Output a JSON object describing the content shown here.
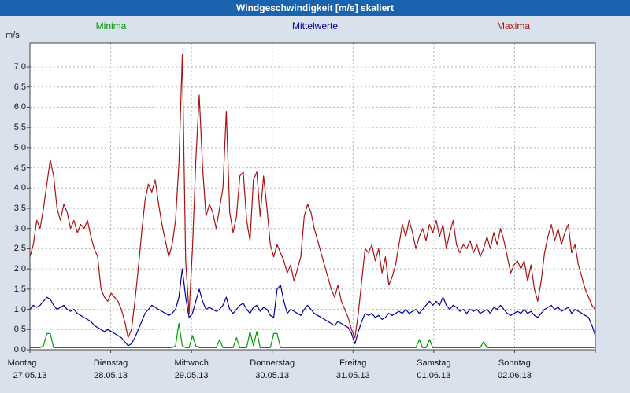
{
  "title": "Windgeschwindigkeit [m/s] skaliert",
  "colors": {
    "titlebar": "#1a63ae",
    "titlebar_text": "#ffffff",
    "background": "#d9e1ec",
    "plot_background": "#ffffff",
    "grid": "#b5b5b5",
    "axis": "#444444",
    "minima": "#009900",
    "mittelwerte": "#000099",
    "maxima": "#aa1111"
  },
  "chart_data": {
    "type": "line",
    "title": "Windgeschwindigkeit [m/s] skaliert",
    "ylabel": "m/s",
    "xlabel": "",
    "ylim": [
      0,
      7.5
    ],
    "y_tick_step": 0.5,
    "grid": true,
    "legend_position": "top",
    "y_tick_labels": [
      "0,0",
      "0,5",
      "1,0",
      "1,5",
      "2,0",
      "2,5",
      "3,0",
      "3,5",
      "4,0",
      "4,5",
      "5,0",
      "5,5",
      "6,0",
      "6,5",
      "7,0"
    ],
    "x_days": [
      {
        "day": "Montag",
        "date": "27.05.13"
      },
      {
        "day": "Dienstag",
        "date": "28.05.13"
      },
      {
        "day": "Mittwoch",
        "date": "29.05.13"
      },
      {
        "day": "Donnerstag",
        "date": "30.05.13"
      },
      {
        "day": "Freitag",
        "date": "31.05.13"
      },
      {
        "day": "Samstag",
        "date": "01.06.13"
      },
      {
        "day": "Sonntag",
        "date": "02.06.13"
      }
    ],
    "series": [
      {
        "name": "Minima",
        "color": "#009900",
        "values": [
          0.05,
          0.05,
          0.05,
          0.05,
          0.1,
          0.4,
          0.4,
          0.05,
          0.05,
          0.05,
          0.05,
          0.05,
          0.05,
          0.05,
          0.05,
          0.05,
          0.05,
          0.05,
          0.05,
          0.05,
          0.05,
          0.05,
          0.05,
          0.05,
          0.05,
          0.05,
          0.05,
          0.05,
          0.05,
          0.05,
          0.05,
          0.05,
          0.05,
          0.05,
          0.05,
          0.05,
          0.05,
          0.05,
          0.05,
          0.05,
          0.05,
          0.05,
          0.05,
          0.1,
          0.65,
          0.1,
          0.05,
          0.05,
          0.35,
          0.1,
          0.05,
          0.05,
          0.05,
          0.05,
          0.05,
          0.05,
          0.25,
          0.05,
          0.05,
          0.05,
          0.05,
          0.3,
          0.05,
          0.05,
          0.05,
          0.45,
          0.1,
          0.45,
          0.05,
          0.05,
          0.05,
          0.05,
          0.4,
          0.4,
          0.05,
          0.05,
          0.05,
          0.05,
          0.05,
          0.05,
          0.05,
          0.05,
          0.05,
          0.05,
          0.05,
          0.05,
          0.05,
          0.05,
          0.05,
          0.05,
          0.05,
          0.05,
          0.05,
          0.05,
          0.05,
          0.05,
          0.05,
          0.05,
          0.05,
          0.05,
          0.05,
          0.05,
          0.05,
          0.05,
          0.05,
          0.05,
          0.05,
          0.05,
          0.05,
          0.05,
          0.05,
          0.05,
          0.05,
          0.05,
          0.05,
          0.25,
          0.05,
          0.05,
          0.25,
          0.05,
          0.05,
          0.05,
          0.05,
          0.05,
          0.05,
          0.05,
          0.05,
          0.05,
          0.05,
          0.05,
          0.05,
          0.05,
          0.05,
          0.05,
          0.2,
          0.05,
          0.05,
          0.05,
          0.05,
          0.05,
          0.05,
          0.05,
          0.05,
          0.05,
          0.05,
          0.05,
          0.05,
          0.05,
          0.05,
          0.05,
          0.05,
          0.05,
          0.05,
          0.05,
          0.05,
          0.05,
          0.05,
          0.05,
          0.05,
          0.05,
          0.05,
          0.05,
          0.05,
          0.05,
          0.05,
          0.05,
          0.05,
          0.05
        ]
      },
      {
        "name": "Mittelwerte",
        "color": "#000099",
        "values": [
          1.0,
          1.1,
          1.05,
          1.1,
          1.2,
          1.3,
          1.25,
          1.1,
          1.0,
          1.05,
          1.1,
          1.0,
          0.95,
          1.0,
          0.9,
          0.85,
          0.8,
          0.75,
          0.7,
          0.6,
          0.55,
          0.5,
          0.45,
          0.5,
          0.45,
          0.4,
          0.35,
          0.3,
          0.2,
          0.1,
          0.15,
          0.3,
          0.5,
          0.7,
          0.9,
          1.0,
          1.1,
          1.05,
          1.0,
          0.95,
          0.9,
          0.85,
          0.9,
          1.0,
          1.3,
          2.0,
          1.3,
          0.8,
          0.9,
          1.2,
          1.5,
          1.2,
          1.0,
          1.05,
          1.0,
          0.95,
          1.0,
          1.1,
          1.3,
          1.0,
          0.9,
          1.0,
          1.1,
          1.15,
          1.0,
          0.9,
          1.05,
          1.1,
          0.95,
          1.05,
          1.0,
          0.85,
          0.8,
          1.5,
          1.6,
          1.2,
          0.9,
          1.0,
          0.95,
          0.9,
          0.85,
          1.0,
          1.1,
          1.0,
          0.9,
          0.85,
          0.8,
          0.75,
          0.7,
          0.65,
          0.6,
          0.7,
          0.65,
          0.6,
          0.55,
          0.4,
          0.15,
          0.45,
          0.7,
          0.9,
          0.85,
          0.9,
          0.8,
          0.85,
          0.75,
          0.8,
          0.9,
          0.85,
          0.9,
          0.95,
          0.9,
          1.0,
          0.9,
          0.95,
          1.0,
          0.9,
          1.0,
          1.1,
          1.2,
          1.1,
          1.2,
          1.1,
          1.3,
          1.1,
          1.0,
          1.1,
          1.05,
          0.95,
          1.0,
          0.9,
          1.0,
          0.95,
          1.0,
          0.9,
          0.95,
          1.0,
          0.9,
          1.05,
          1.0,
          1.1,
          1.0,
          0.9,
          0.85,
          0.9,
          0.95,
          0.9,
          1.0,
          0.9,
          0.95,
          0.85,
          0.8,
          0.9,
          1.0,
          1.05,
          1.1,
          1.0,
          1.05,
          0.95,
          1.0,
          1.05,
          0.9,
          1.0,
          0.95,
          0.9,
          0.85,
          0.8,
          0.6,
          0.35
        ]
      },
      {
        "name": "Maxima",
        "color": "#aa1111",
        "values": [
          2.3,
          2.6,
          3.2,
          3.0,
          3.5,
          4.1,
          4.7,
          4.3,
          3.5,
          3.2,
          3.6,
          3.4,
          3.0,
          3.2,
          2.9,
          3.1,
          3.0,
          3.2,
          2.8,
          2.5,
          2.3,
          1.5,
          1.3,
          1.2,
          1.4,
          1.3,
          1.2,
          1.0,
          0.7,
          0.3,
          0.5,
          1.2,
          2.0,
          2.9,
          3.7,
          4.1,
          3.9,
          4.2,
          3.6,
          3.1,
          2.7,
          2.3,
          2.6,
          3.2,
          4.6,
          7.3,
          2.2,
          0.9,
          2.5,
          4.7,
          6.3,
          4.5,
          3.3,
          3.6,
          3.4,
          3.0,
          3.5,
          4.0,
          5.9,
          3.4,
          2.9,
          3.3,
          4.3,
          4.4,
          3.2,
          2.7,
          4.2,
          4.4,
          3.3,
          4.3,
          3.5,
          2.6,
          2.3,
          2.6,
          2.4,
          2.2,
          1.9,
          2.1,
          1.7,
          2.0,
          2.3,
          3.3,
          3.6,
          3.4,
          3.0,
          2.7,
          2.4,
          2.1,
          1.8,
          1.5,
          1.3,
          1.6,
          1.2,
          1.0,
          0.8,
          0.5,
          0.3,
          0.9,
          1.7,
          2.5,
          2.4,
          2.6,
          2.2,
          2.5,
          1.9,
          2.3,
          1.6,
          1.8,
          2.1,
          2.6,
          3.1,
          2.8,
          3.2,
          2.9,
          2.5,
          2.8,
          3.0,
          2.7,
          3.1,
          2.9,
          3.2,
          2.8,
          3.1,
          2.5,
          2.9,
          3.2,
          2.6,
          2.4,
          2.6,
          2.5,
          2.7,
          2.4,
          2.6,
          2.3,
          2.5,
          2.8,
          2.5,
          2.9,
          2.6,
          3.0,
          2.7,
          2.3,
          1.9,
          2.1,
          2.2,
          2.0,
          2.2,
          1.7,
          2.1,
          1.5,
          1.2,
          1.7,
          2.4,
          2.8,
          3.1,
          2.7,
          3.0,
          2.6,
          2.9,
          3.1,
          2.4,
          2.6,
          2.1,
          1.8,
          1.5,
          1.3,
          1.1,
          1.0
        ]
      }
    ]
  }
}
